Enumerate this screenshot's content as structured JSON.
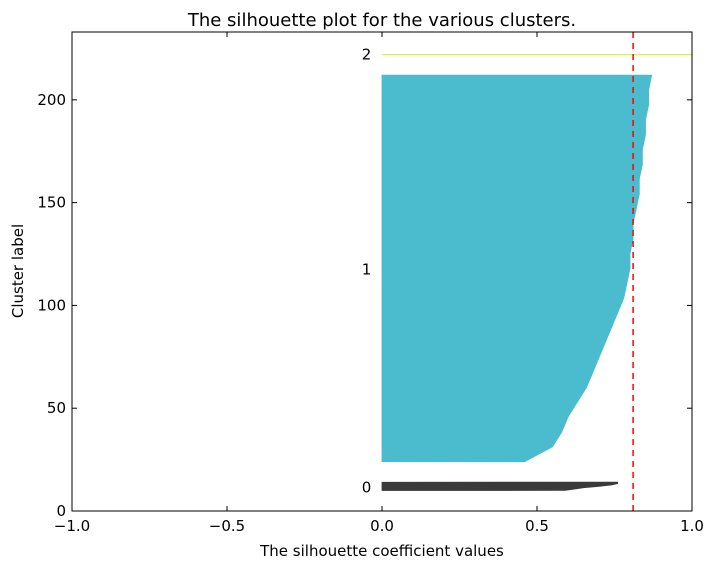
{
  "chart_data": {
    "type": "area",
    "title": "The silhouette plot for the various clusters.",
    "xlabel": "The silhouette coefficient values",
    "ylabel": "Cluster label",
    "xlim": [
      -1.0,
      1.0
    ],
    "ylim": [
      0,
      233
    ],
    "x_ticks": [
      "−1.0",
      "−0.5",
      "0.0",
      "0.5",
      "1.0"
    ],
    "y_ticks": [
      "0",
      "50",
      "100",
      "150",
      "200"
    ],
    "average_silhouette_score": 0.81,
    "average_line_color": "#ff0000",
    "grid": false,
    "clusters": [
      {
        "label": "0",
        "label_x": -0.05,
        "y_start": 10,
        "y_end": 14,
        "color": "#3a3a3a",
        "silhouette_values_sorted": [
          0.59,
          0.62,
          0.65,
          0.7,
          0.74,
          0.76,
          0.76
        ]
      },
      {
        "label": "1",
        "label_x": -0.05,
        "y_start": 24,
        "y_end": 212,
        "color": "#4bbccd",
        "silhouette_values_sorted": [
          0.46,
          0.55,
          0.58,
          0.6,
          0.63,
          0.66,
          0.68,
          0.7,
          0.72,
          0.74,
          0.76,
          0.78,
          0.79,
          0.8,
          0.8,
          0.81,
          0.81,
          0.82,
          0.83,
          0.83,
          0.84,
          0.84,
          0.85,
          0.85,
          0.86,
          0.86,
          0.87
        ]
      },
      {
        "label": "2",
        "label_x": -0.05,
        "y_start": 222,
        "y_end": 223,
        "color": "#d7f542",
        "silhouette_values_sorted": [
          1.0
        ]
      }
    ]
  }
}
